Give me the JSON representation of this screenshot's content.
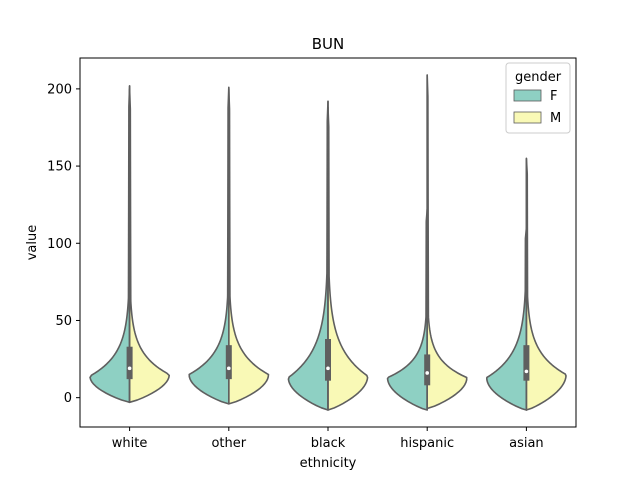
{
  "chart_data": {
    "type": "violin",
    "title": "BUN",
    "xlabel": "ethnicity",
    "ylabel": "value",
    "categories": [
      "white",
      "other",
      "black",
      "hispanic",
      "asian"
    ],
    "ylim": [
      -19,
      220
    ],
    "yticks": [
      0,
      50,
      100,
      150,
      200
    ],
    "split": true,
    "legend": {
      "title": "gender",
      "placement": "top-right",
      "entries": [
        {
          "name": "F",
          "color": "#8ed0c3"
        },
        {
          "name": "M",
          "color": "#f9f9b6"
        }
      ]
    },
    "series": [
      {
        "name": "F",
        "color": "#8ed0c3",
        "violins": [
          {
            "min": -3,
            "max": 202,
            "mode": 14,
            "q1": 12,
            "median": 19,
            "q3": 33
          },
          {
            "min": -4,
            "max": 201,
            "mode": 15,
            "q1": 12,
            "median": 19,
            "q3": 34
          },
          {
            "min": -8,
            "max": 192,
            "mode": 13,
            "q1": 11,
            "median": 19,
            "q3": 38
          },
          {
            "min": -8,
            "max": 122,
            "mode": 13,
            "q1": 8,
            "median": 16,
            "q3": 28
          },
          {
            "min": -8,
            "max": 110,
            "mode": 13,
            "q1": 11,
            "median": 17,
            "q3": 34
          }
        ]
      },
      {
        "name": "M",
        "color": "#f9f9b6",
        "violins": [
          {
            "min": -3,
            "max": 200,
            "mode": 15,
            "q1": 12,
            "median": 19,
            "q3": 33
          },
          {
            "min": -4,
            "max": 200,
            "mode": 15,
            "q1": 12,
            "median": 19,
            "q3": 34
          },
          {
            "min": -8,
            "max": 188,
            "mode": 14,
            "q1": 11,
            "median": 19,
            "q3": 38
          },
          {
            "min": -7,
            "max": 209,
            "mode": 13,
            "q1": 8,
            "median": 16,
            "q3": 28
          },
          {
            "min": -8,
            "max": 155,
            "mode": 15,
            "q1": 11,
            "median": 17,
            "q3": 34
          }
        ]
      }
    ]
  }
}
